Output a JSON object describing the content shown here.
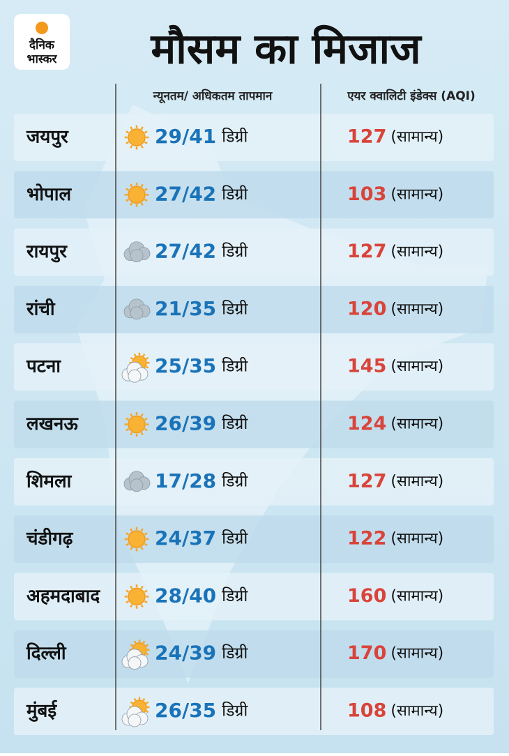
{
  "logo": {
    "line1": "दैनिक",
    "line2": "भास्कर"
  },
  "header": {
    "title": "मौसम का मिजाज"
  },
  "table": {
    "columns": [
      "न्यूनतम/ अधिकतम तापमान",
      "एयर क्वालिटी इंडेक्स (AQI)"
    ],
    "rows": [
      {
        "city": "जयपुर",
        "icon": "sun",
        "temp": "29/41",
        "unit": "डिग्री",
        "aqi": 127,
        "status": "(सामान्य)"
      },
      {
        "city": "भोपाल",
        "icon": "sun",
        "temp": "27/42",
        "unit": "डिग्री",
        "aqi": 103,
        "status": "(सामान्य)"
      },
      {
        "city": "रायपुर",
        "icon": "cloud",
        "temp": "27/42",
        "unit": "डिग्री",
        "aqi": 127,
        "status": "(सामान्य)"
      },
      {
        "city": "रांची",
        "icon": "cloud",
        "temp": "21/35",
        "unit": "डिग्री",
        "aqi": 120,
        "status": "(सामान्य)"
      },
      {
        "city": "पटना",
        "icon": "partly",
        "temp": "25/35",
        "unit": "डिग्री",
        "aqi": 145,
        "status": "(सामान्य)"
      },
      {
        "city": "लखनऊ",
        "icon": "sun",
        "temp": "26/39",
        "unit": "डिग्री",
        "aqi": 124,
        "status": "(सामान्य)"
      },
      {
        "city": "शिमला",
        "icon": "cloud",
        "temp": "17/28",
        "unit": "डिग्री",
        "aqi": 127,
        "status": "(सामान्य)"
      },
      {
        "city": "चंडीगढ़",
        "icon": "sun",
        "temp": "24/37",
        "unit": "डिग्री",
        "aqi": 122,
        "status": "(सामान्य)"
      },
      {
        "city": "अहमदाबाद",
        "icon": "sun",
        "temp": "28/40",
        "unit": "डिग्री",
        "aqi": 160,
        "status": "(सामान्य)"
      },
      {
        "city": "दिल्ली",
        "icon": "partly",
        "temp": "24/39",
        "unit": "डिग्री",
        "aqi": 170,
        "status": "(सामान्य)"
      },
      {
        "city": "मुंबई",
        "icon": "partly",
        "temp": "26/35",
        "unit": "डिग्री",
        "aqi": 108,
        "status": "(सामान्य)"
      }
    ]
  }
}
